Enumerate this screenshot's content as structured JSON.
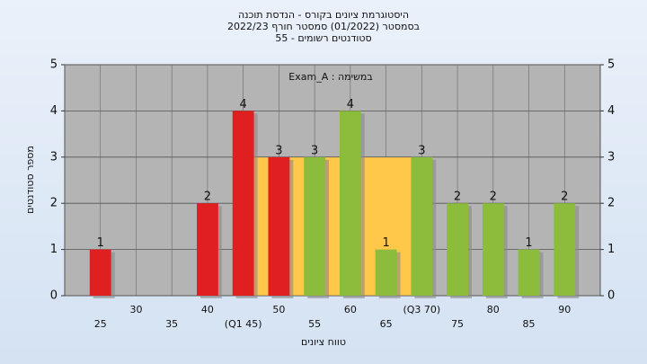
{
  "chart_data": {
    "type": "bar",
    "title": [
      "היסטוגרמת ציונים בקורס - הנדסת תוכנה",
      "בסמסטר  (01/2022)  סמסטר חורף 2022/23",
      "סטודנטים רשומים - 55"
    ],
    "annotation": "במשימה : Exam_A",
    "x_label": "טווח ציונים",
    "y_label": "מספר סטודנטים",
    "x": [
      25,
      30,
      35,
      40,
      45,
      50,
      55,
      60,
      65,
      70,
      75,
      80,
      85,
      90
    ],
    "values": [
      1,
      0,
      0,
      2,
      4,
      3,
      3,
      4,
      1,
      3,
      2,
      2,
      1,
      2
    ],
    "colors": [
      "#e02020",
      "#e02020",
      "#e02020",
      "#e02020",
      "#e02020",
      "#e02020",
      "#8cbc3c",
      "#8cbc3c",
      "#8cbc3c",
      "#8cbc3c",
      "#8cbc3c",
      "#8cbc3c",
      "#8cbc3c",
      "#8cbc3c"
    ],
    "iqr_band": {
      "from": 45,
      "to": 70,
      "level": 3,
      "color": "#ffc84a"
    },
    "xlim": [
      20,
      95
    ],
    "xticks": [
      25,
      30,
      35,
      40,
      {
        "value": 45,
        "label": "(Q1 45)"
      },
      50,
      55,
      60,
      65,
      {
        "value": 70,
        "label": "(Q3 70)"
      },
      75,
      80,
      85,
      90
    ],
    "ylim": [
      0,
      5
    ],
    "yticks": [
      0,
      1,
      2,
      3,
      4,
      5
    ],
    "grid": true
  }
}
